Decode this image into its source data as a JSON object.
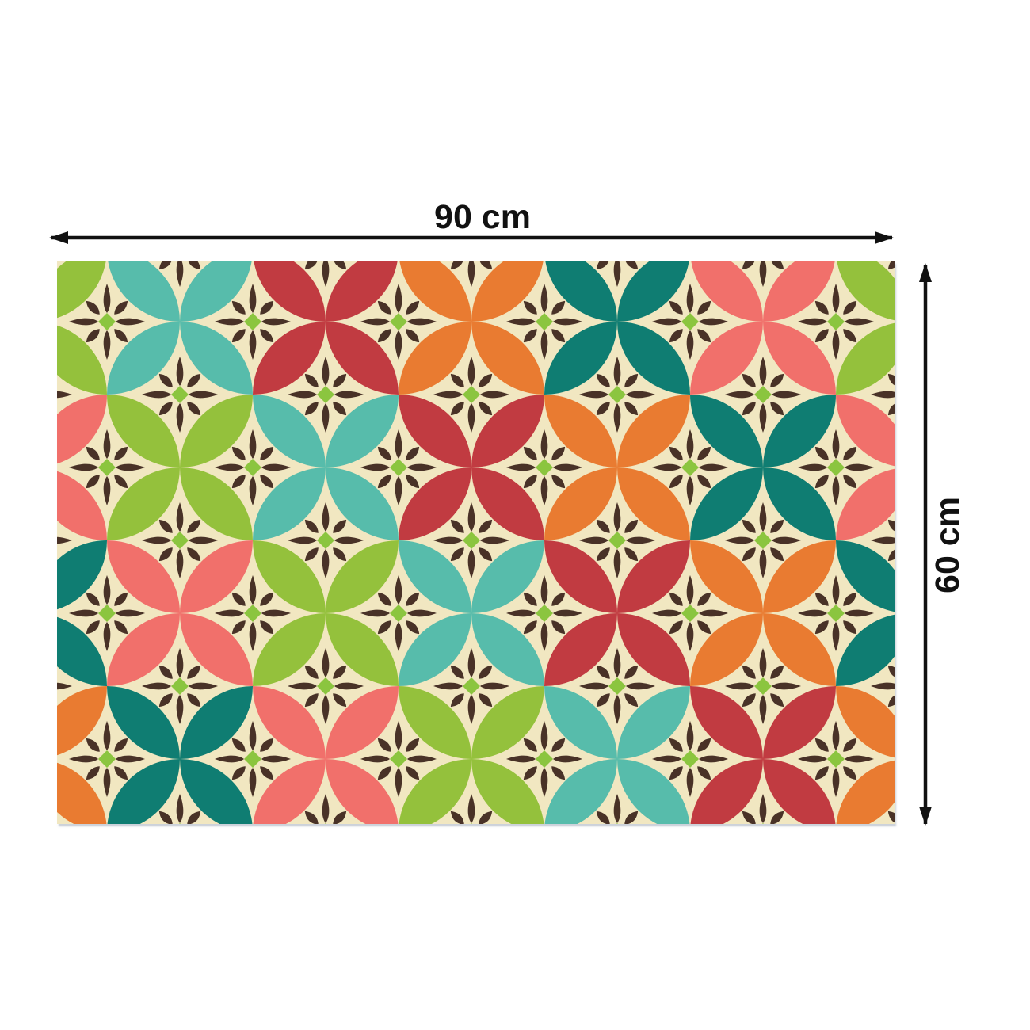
{
  "diagram": {
    "type": "product-dimension-diagram",
    "subject": "decorative rectangular mat with retro quatrefoil circle pattern",
    "width_label": "90 cm",
    "height_label": "60 cm",
    "annotation_color": "#111111"
  },
  "pattern": {
    "background": "#f1e7c1",
    "flower": {
      "petal_color": "#493227",
      "diamond_color": "#8bc53f"
    },
    "palette": {
      "green": "#94c13c",
      "teal": "#57bcab",
      "red": "#c13b41",
      "orange": "#e97b31",
      "dark_teal": "#0f7d72",
      "coral": "#f1706b"
    },
    "color_cycle": [
      "green",
      "teal",
      "red",
      "orange",
      "dark_teal",
      "coral"
    ],
    "lattice": {
      "spacing": 92,
      "origin_x_local": -29,
      "origin_y_local": -16,
      "owner_grid_step": 184,
      "owner_first_x_local": -29,
      "owner_first_y_local": -108,
      "owner_cols": 7,
      "owner_rows": 5,
      "flower_cols": 13,
      "flower_rows": 9
    }
  }
}
